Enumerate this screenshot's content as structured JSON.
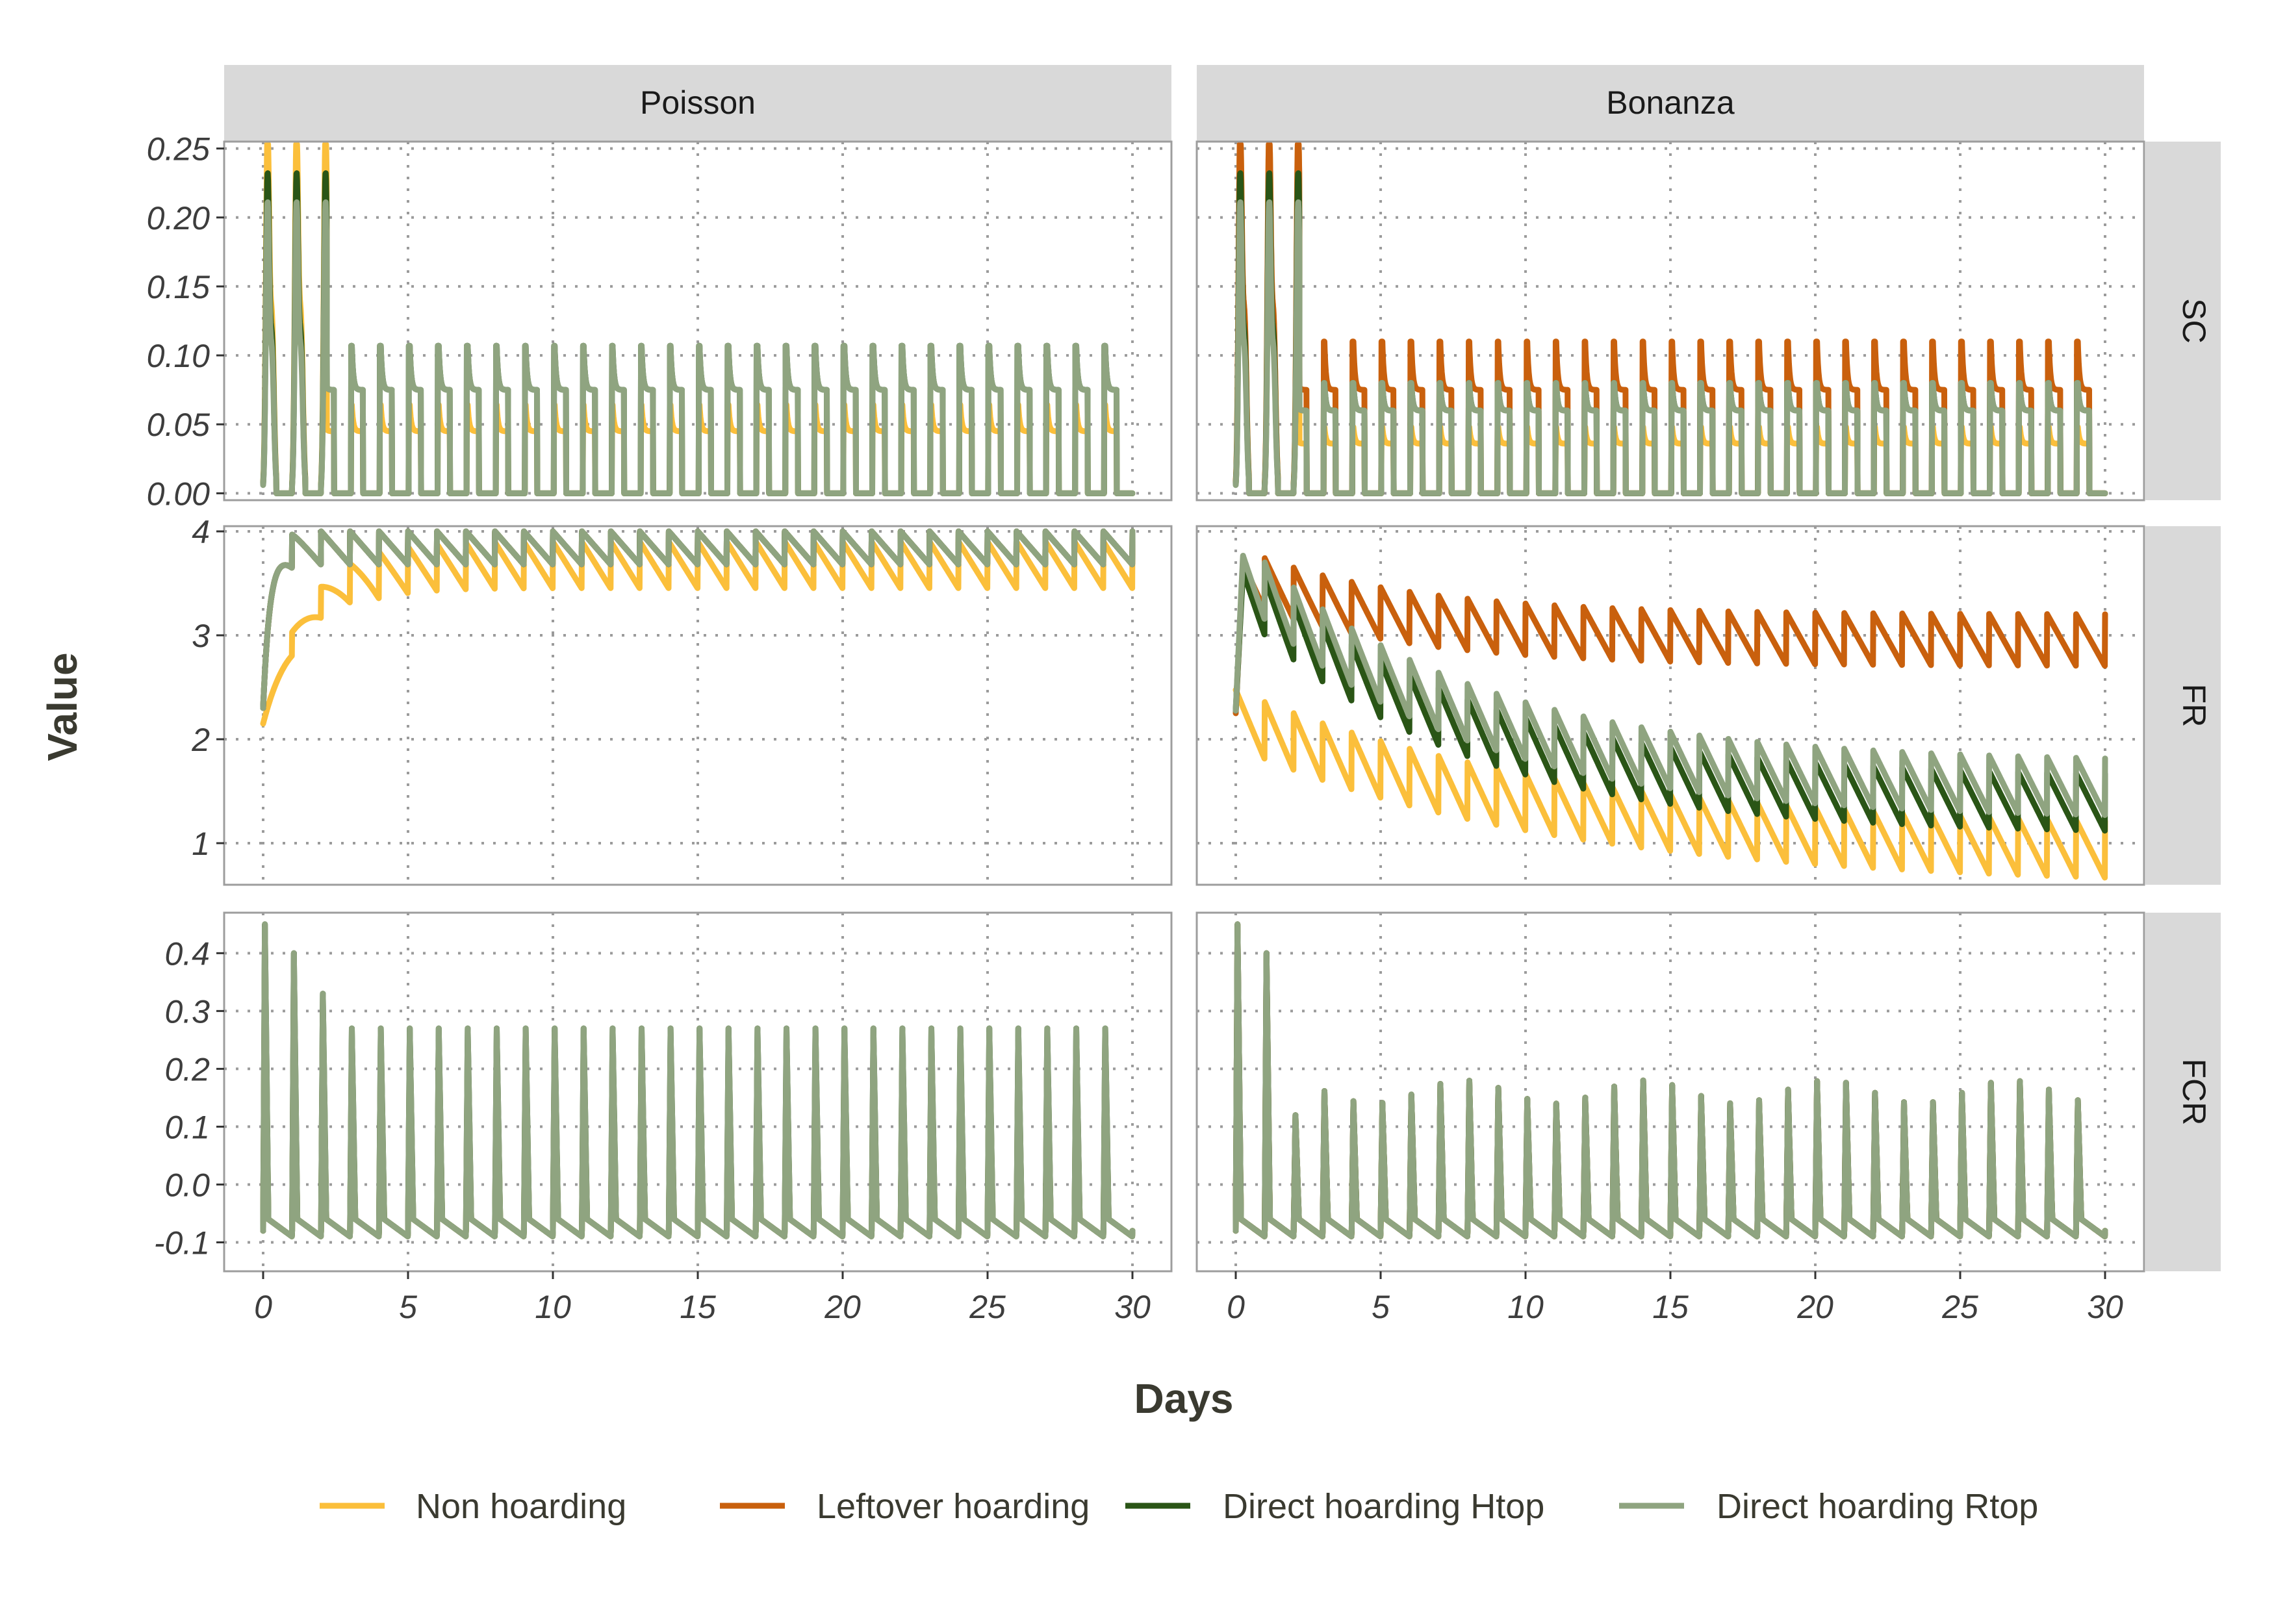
{
  "chart_data": {
    "type": "line",
    "layout": "facet-grid",
    "xlabel": "Days",
    "ylabel": "Value",
    "x_ticks": [
      0,
      5,
      10,
      15,
      20,
      25,
      30
    ],
    "xlim": [
      0,
      30
    ],
    "grid": "dotted",
    "legend_position": "bottom",
    "columns": [
      "Poisson",
      "Bonanza"
    ],
    "rows": [
      {
        "name": "SC",
        "ylim": [
          -0.005,
          0.255
        ],
        "ticks": [
          0.0,
          0.05,
          0.1,
          0.15,
          0.2,
          0.25
        ],
        "tick_labels": [
          "0.00",
          "0.05",
          "0.10",
          "0.15",
          "0.20",
          "0.25"
        ]
      },
      {
        "name": "FR",
        "ylim": [
          0.6,
          4.05
        ],
        "ticks": [
          1,
          2,
          3,
          4
        ],
        "tick_labels": [
          "1",
          "2",
          "3",
          "4"
        ]
      },
      {
        "name": "FCR",
        "ylim": [
          -0.15,
          0.47
        ],
        "ticks": [
          -0.1,
          0.0,
          0.1,
          0.2,
          0.3,
          0.4
        ],
        "tick_labels": [
          "-0.1",
          "0.0",
          "0.1",
          "0.2",
          "0.3",
          "0.4"
        ]
      }
    ],
    "series": [
      {
        "name": "Non hoarding",
        "color": "#FBBF3B"
      },
      {
        "name": "Leftover hoarding",
        "color": "#C9600D"
      },
      {
        "name": "Direct hoarding Htop",
        "color": "#2A5516"
      },
      {
        "name": "Direct hoarding Rtop",
        "color": "#8FA480"
      }
    ],
    "cycle_summary": {
      "Poisson": {
        "FR": {
          "Non hoarding": [
            2.0,
            3.0,
            3.5,
            3.7,
            3.75
          ],
          "other": [
            2.0,
            3.6,
            3.8,
            3.9,
            4.0
          ],
          "steady_range": [
            3.4,
            4.0
          ]
        },
        "SC": {
          "peak_early": 0.25,
          "peak_steady": 0.107,
          "plateau": 0.075
        },
        "FCR": {
          "peak_early": 0.45,
          "peak_steady": 0.27,
          "baseline": -0.08
        }
      },
      "Bonanza": {
        "FR": {
          "Non hoarding": {
            "start": 2.2,
            "end": 0.8
          },
          "Leftover hoarding": {
            "start": 3.7,
            "end": 2.9
          },
          "Direct hoarding Htop": {
            "start": 3.7,
            "end": 1.3
          },
          "Direct hoarding Rtop": {
            "start": 3.75,
            "end": 1.45
          }
        },
        "SC": {
          "peak_early": 0.25,
          "Leftover hoarding_peak": 0.11,
          "other_peak": 0.08,
          "plateau": 0.06
        },
        "FCR": {
          "peak_early": 0.45,
          "peak_steady": 0.16,
          "baseline": -0.08
        }
      }
    }
  }
}
